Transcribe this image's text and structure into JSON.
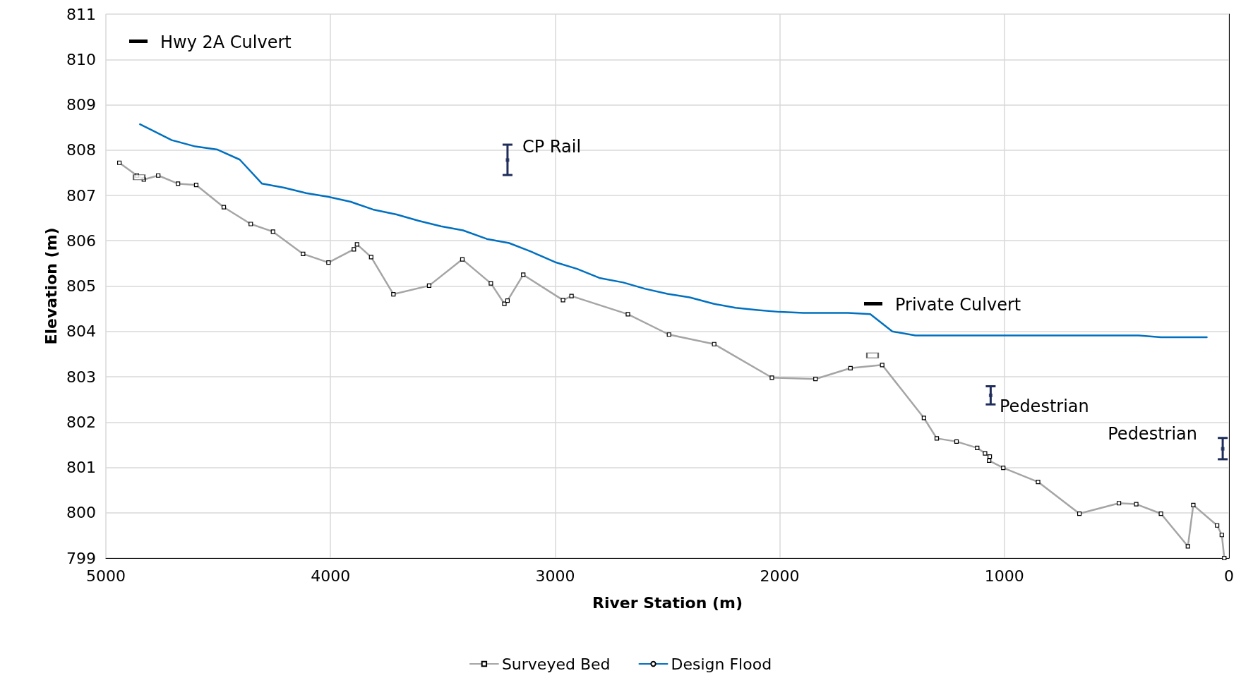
{
  "chart_data": {
    "type": "line",
    "xlabel": "River Station (m)",
    "ylabel": "Elevation (m)",
    "xlim": [
      5000,
      0
    ],
    "xticks": [
      5000,
      4000,
      3000,
      2000,
      1000,
      0
    ],
    "ylim": [
      799,
      811
    ],
    "yticks": [
      799,
      800,
      801,
      802,
      803,
      804,
      805,
      806,
      807,
      808,
      809,
      810,
      811
    ],
    "grid": true,
    "legend": "bottom",
    "series": [
      {
        "name": "Surveyed Bed",
        "color": "#a5a5a5",
        "marker": "square",
        "x": [
          4940,
          4862,
          4831,
          4767,
          4679,
          4598,
          4475,
          4355,
          4256,
          4122,
          4009,
          3896,
          3882,
          3819,
          3720,
          3561,
          3413,
          3286,
          3226,
          3212,
          3142,
          2965,
          2927,
          2676,
          2493,
          2292,
          2035,
          1841,
          1685,
          1544,
          1358,
          1301,
          1213,
          1121,
          1086,
          1065,
          1068,
          1005,
          850,
          666,
          490,
          413,
          303,
          183,
          159,
          53,
          32,
          21
        ],
        "values": [
          807.72,
          807.44,
          807.35,
          807.44,
          807.26,
          807.23,
          806.74,
          806.37,
          806.2,
          805.71,
          805.52,
          805.81,
          805.92,
          805.64,
          804.82,
          805.01,
          805.59,
          805.06,
          804.61,
          804.68,
          805.25,
          804.69,
          804.78,
          804.38,
          803.93,
          803.72,
          802.98,
          802.95,
          803.19,
          803.26,
          802.09,
          801.64,
          801.57,
          801.43,
          801.31,
          801.24,
          801.15,
          800.99,
          800.68,
          799.98,
          800.21,
          800.19,
          799.98,
          799.26,
          800.17,
          799.72,
          799.51,
          799.0
        ]
      },
      {
        "name": "Design Flood",
        "color": "#0070c0",
        "marker": "none",
        "x": [
          4848,
          4799,
          4707,
          4602,
          4503,
          4404,
          4305,
          4207,
          4108,
          4009,
          3910,
          3811,
          3706,
          3607,
          3508,
          3410,
          3304,
          3205,
          3107,
          3001,
          2902,
          2803,
          2697,
          2599,
          2500,
          2401,
          2295,
          2197,
          2098,
          2000,
          1894,
          1696,
          1597,
          1499,
          1396,
          402,
          303,
          99
        ],
        "values": [
          808.57,
          808.45,
          808.22,
          808.08,
          808.01,
          807.79,
          807.26,
          807.17,
          807.05,
          806.97,
          806.86,
          806.69,
          806.58,
          806.44,
          806.32,
          806.23,
          806.04,
          805.95,
          805.76,
          805.53,
          805.38,
          805.18,
          805.08,
          804.94,
          804.83,
          804.75,
          804.61,
          804.52,
          804.47,
          804.43,
          804.41,
          804.41,
          804.38,
          804.0,
          803.91,
          803.91,
          803.87,
          803.87
        ]
      },
      {
        "type": "scatter",
        "color": "#1f2d5a",
        "marker": "square",
        "x": [
          3212,
          1061,
          28
        ],
        "values": [
          807.78,
          802.59,
          801.41
        ],
        "errors": [
          [
            807.45,
            808.12
          ],
          [
            802.39,
            802.79
          ],
          [
            801.18,
            801.65
          ]
        ]
      },
      {
        "type": "scatter",
        "color": "#ffffff",
        "marker": "square",
        "x": [
          4852,
          1587
        ],
        "values": [
          807.4,
          803.47
        ]
      }
    ],
    "annotations": [
      "Hwy 2A Culvert",
      "CP Rail",
      "Private Culvert",
      "Pedestrian",
      "Pedestrian"
    ]
  }
}
